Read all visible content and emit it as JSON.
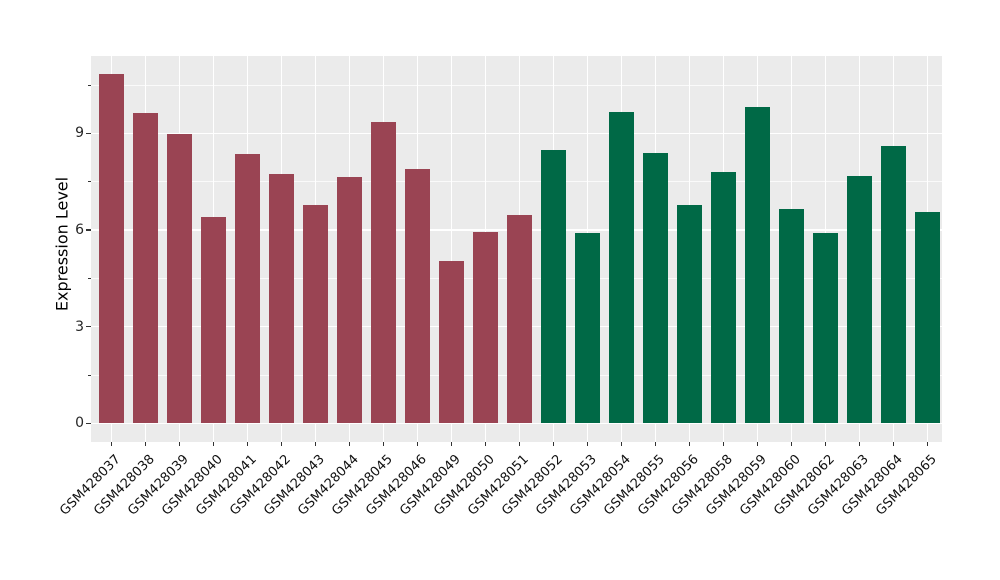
{
  "chart_data": {
    "type": "bar",
    "title": "",
    "xlabel": "",
    "ylabel": "Expression Level",
    "ytick_values": [
      0,
      3,
      6,
      9
    ],
    "ytick_labels": [
      "0",
      "3",
      "6",
      "9"
    ],
    "minor_ytick_values": [
      1.5,
      4.5,
      7.5,
      10.5
    ],
    "ylim": [
      -0.6,
      11.4
    ],
    "grid": "white major and minor horizontal gridlines plus vertical gridlines at each category center, on gray panel",
    "legend_position": "none",
    "panel_background": "#EBEBEB",
    "figure_background": "#ffffff",
    "group_colors": {
      "groupA": "#9A4453",
      "groupB": "#006946"
    },
    "bars": [
      {
        "label": "GSM428037",
        "value": 10.85,
        "group": "groupA"
      },
      {
        "label": "GSM428038",
        "value": 9.63,
        "group": "groupA"
      },
      {
        "label": "GSM428039",
        "value": 8.97,
        "group": "groupA"
      },
      {
        "label": "GSM428040",
        "value": 6.41,
        "group": "groupA"
      },
      {
        "label": "GSM428041",
        "value": 8.35,
        "group": "groupA"
      },
      {
        "label": "GSM428042",
        "value": 7.74,
        "group": "groupA"
      },
      {
        "label": "GSM428043",
        "value": 6.77,
        "group": "groupA"
      },
      {
        "label": "GSM428044",
        "value": 7.64,
        "group": "groupA"
      },
      {
        "label": "GSM428045",
        "value": 9.35,
        "group": "groupA"
      },
      {
        "label": "GSM428046",
        "value": 7.89,
        "group": "groupA"
      },
      {
        "label": "GSM428049",
        "value": 5.03,
        "group": "groupA"
      },
      {
        "label": "GSM428050",
        "value": 5.94,
        "group": "groupA"
      },
      {
        "label": "GSM428051",
        "value": 6.46,
        "group": "groupA"
      },
      {
        "label": "GSM428052",
        "value": 8.48,
        "group": "groupB"
      },
      {
        "label": "GSM428053",
        "value": 5.91,
        "group": "groupB"
      },
      {
        "label": "GSM428054",
        "value": 9.65,
        "group": "groupB"
      },
      {
        "label": "GSM428055",
        "value": 8.39,
        "group": "groupB"
      },
      {
        "label": "GSM428056",
        "value": 6.77,
        "group": "groupB"
      },
      {
        "label": "GSM428058",
        "value": 7.8,
        "group": "groupB"
      },
      {
        "label": "GSM428059",
        "value": 9.81,
        "group": "groupB"
      },
      {
        "label": "GSM428060",
        "value": 6.64,
        "group": "groupB"
      },
      {
        "label": "GSM428062",
        "value": 5.92,
        "group": "groupB"
      },
      {
        "label": "GSM428063",
        "value": 7.67,
        "group": "groupB"
      },
      {
        "label": "GSM428064",
        "value": 8.61,
        "group": "groupB"
      },
      {
        "label": "GSM428065",
        "value": 6.57,
        "group": "groupB"
      }
    ]
  }
}
